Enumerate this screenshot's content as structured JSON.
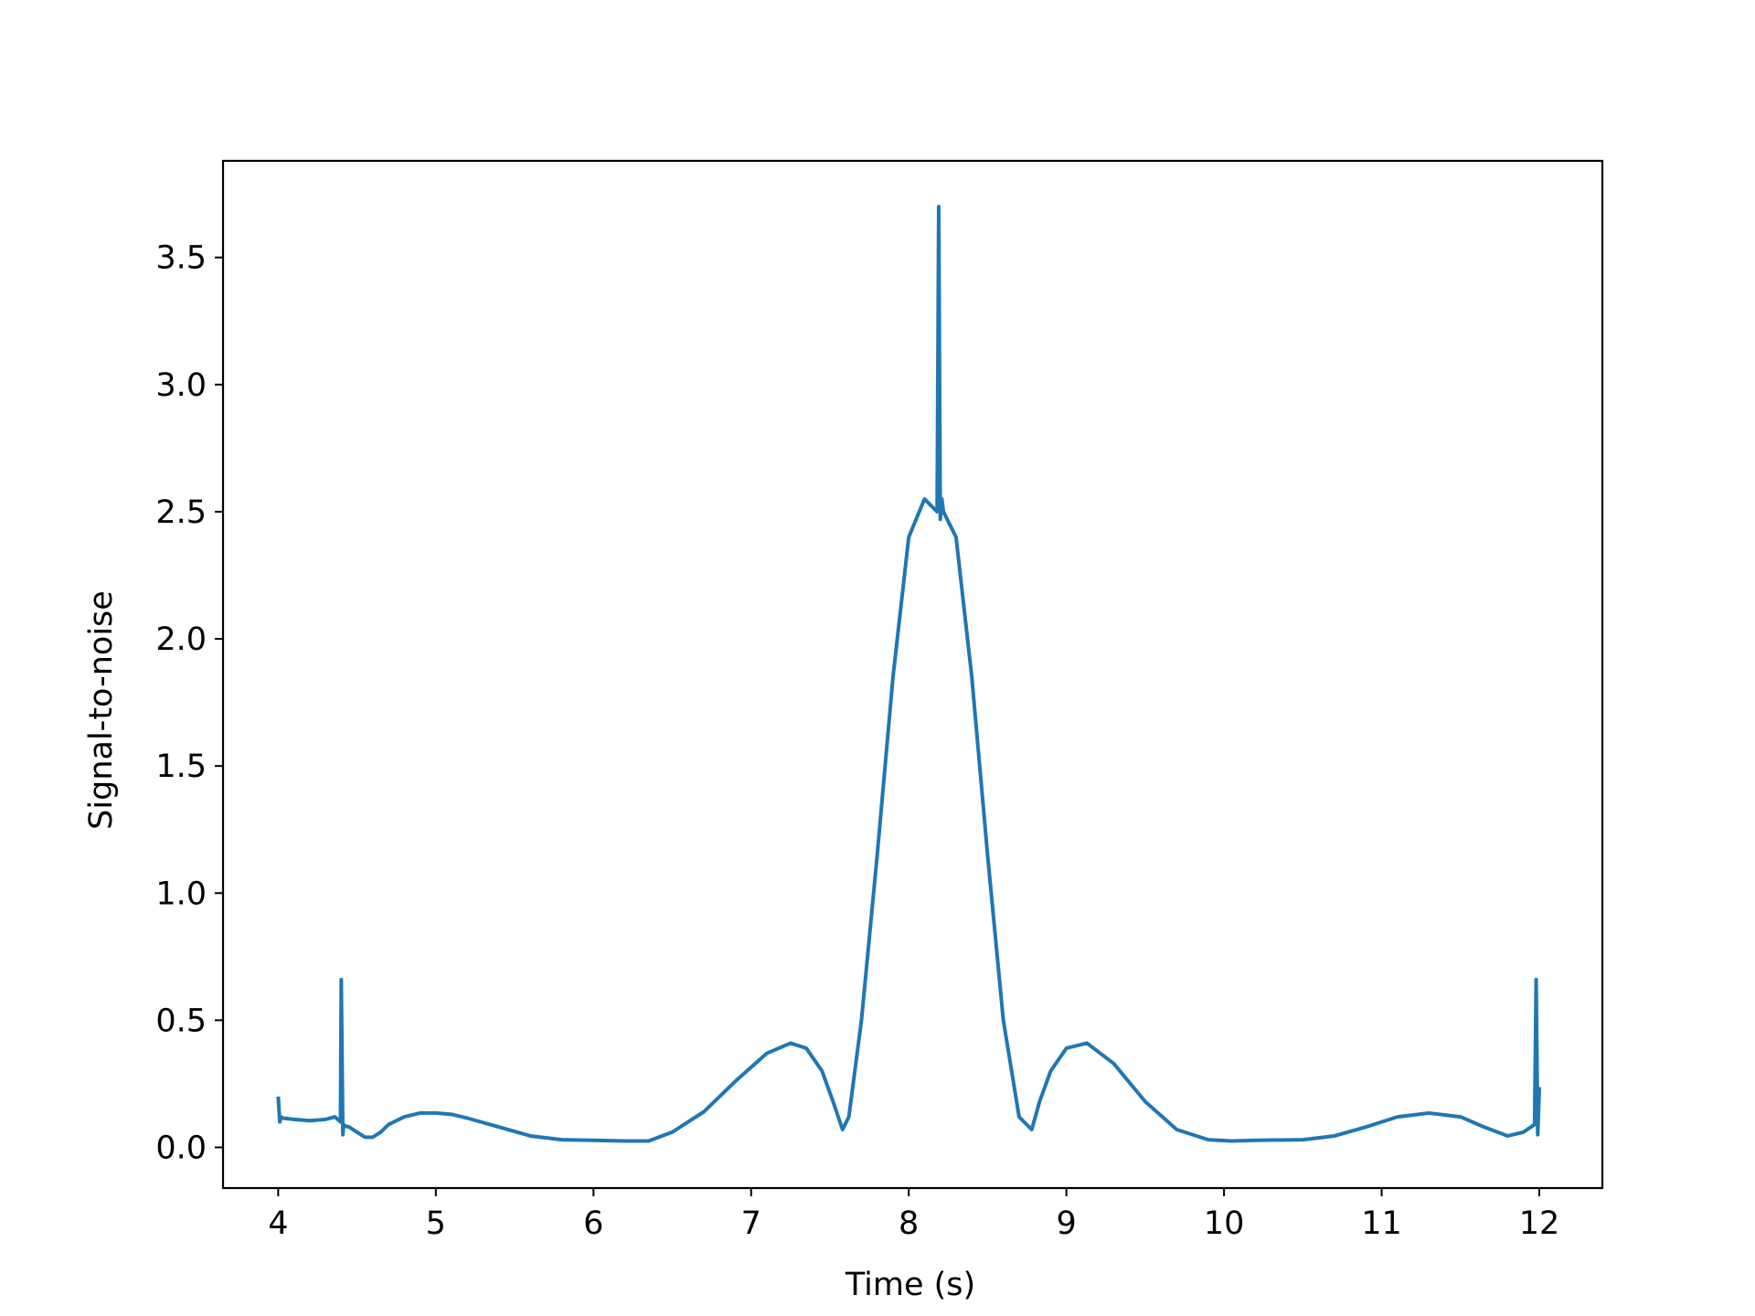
{
  "chart_data": {
    "type": "line",
    "title": "",
    "xlabel": "Time (s)",
    "ylabel": "Signal-to-noise",
    "xlim": [
      3.65,
      12.4
    ],
    "ylim": [
      -0.16,
      3.88
    ],
    "xticks": [
      4,
      5,
      6,
      7,
      8,
      9,
      10,
      11,
      12
    ],
    "xtick_labels": [
      "4",
      "5",
      "6",
      "7",
      "8",
      "9",
      "10",
      "11",
      "12"
    ],
    "yticks": [
      0.0,
      0.5,
      1.0,
      1.5,
      2.0,
      2.5,
      3.0,
      3.5
    ],
    "ytick_labels": [
      "0.0",
      "0.5",
      "1.0",
      "1.5",
      "2.0",
      "2.5",
      "3.0",
      "3.5"
    ],
    "grid": false,
    "legend": "none",
    "colors": {
      "series": "#1f77b4",
      "axes": "#000000",
      "background": "#ffffff"
    },
    "series": [
      {
        "x": [
          4.0,
          4.01,
          4.015,
          4.03,
          4.1,
          4.2,
          4.3,
          4.36,
          4.395,
          4.4,
          4.41,
          4.415,
          4.42,
          4.45,
          4.5,
          4.55,
          4.6,
          4.65,
          4.7,
          4.8,
          4.9,
          5.0,
          5.1,
          5.2,
          5.4,
          5.6,
          5.8,
          6.0,
          6.2,
          6.35,
          6.5,
          6.7,
          6.9,
          7.1,
          7.25,
          7.35,
          7.45,
          7.52,
          7.58,
          7.62,
          7.7,
          7.8,
          7.9,
          8.0,
          8.1,
          8.18,
          8.19,
          8.2,
          8.21,
          8.22,
          8.3,
          8.4,
          8.5,
          8.6,
          8.7,
          8.78,
          8.83,
          8.9,
          9.0,
          9.13,
          9.3,
          9.5,
          9.7,
          9.9,
          10.05,
          10.2,
          10.5,
          10.7,
          10.9,
          11.1,
          11.3,
          11.5,
          11.65,
          11.8,
          11.9,
          11.97,
          11.98,
          11.99,
          12.0,
          12.01
        ],
        "y": [
          0.2,
          0.1,
          0.12,
          0.115,
          0.11,
          0.105,
          0.11,
          0.12,
          0.1,
          0.66,
          0.05,
          0.09,
          0.085,
          0.08,
          0.06,
          0.04,
          0.04,
          0.06,
          0.09,
          0.12,
          0.135,
          0.135,
          0.13,
          0.115,
          0.08,
          0.045,
          0.03,
          0.028,
          0.025,
          0.025,
          0.06,
          0.14,
          0.26,
          0.37,
          0.41,
          0.39,
          0.3,
          0.18,
          0.07,
          0.12,
          0.5,
          1.15,
          1.85,
          2.4,
          2.55,
          2.5,
          3.7,
          2.47,
          2.55,
          2.5,
          2.4,
          1.85,
          1.15,
          0.5,
          0.12,
          0.07,
          0.18,
          0.3,
          0.39,
          0.41,
          0.33,
          0.18,
          0.07,
          0.03,
          0.025,
          0.028,
          0.03,
          0.045,
          0.08,
          0.12,
          0.135,
          0.12,
          0.08,
          0.045,
          0.06,
          0.09,
          0.66,
          0.05,
          0.23,
          0.23
        ]
      }
    ]
  }
}
